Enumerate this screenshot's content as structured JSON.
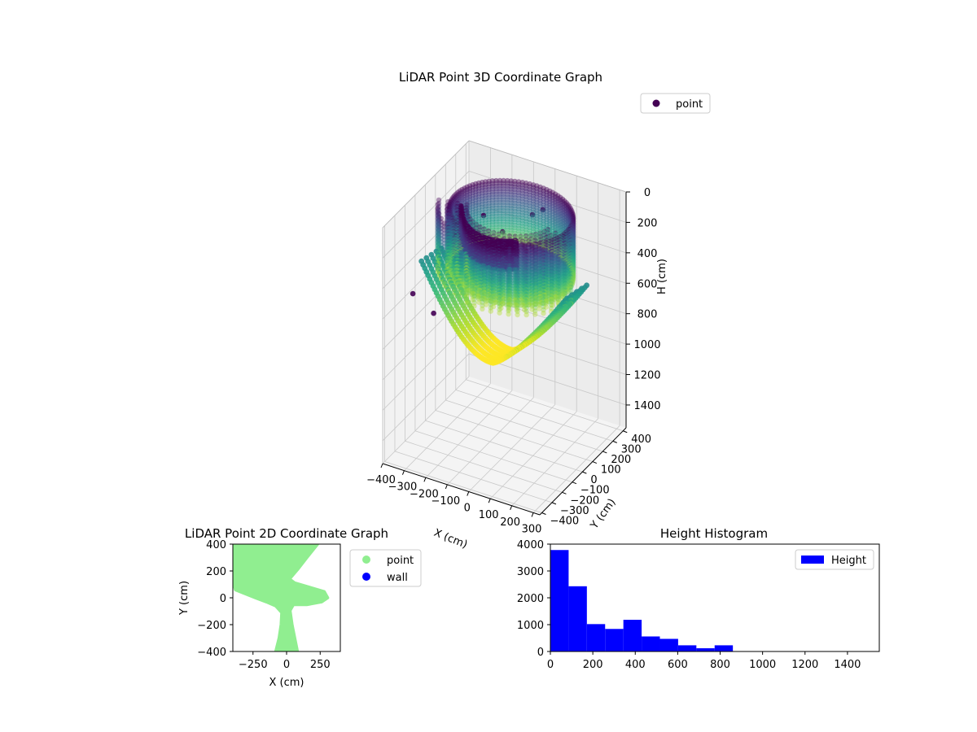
{
  "colors": {
    "wall_3d_dark": "#440154",
    "viridis_mid": "#21918c",
    "viridis_light": "#fde725",
    "point_2d": "#90ee90",
    "wall_2d": "#0000ff",
    "histogram": "#0000ff",
    "pane": "#f2f2f2",
    "grid": "#c8c8c8"
  },
  "chart_data": [
    {
      "id": "lidar-3d",
      "type": "scatter",
      "projection": "3d",
      "title": "LiDAR Point 3D Coordinate Graph",
      "xlabel": "X (cm)",
      "ylabel": "Y (cm)",
      "zlabel": "H (cm)",
      "xlim": [
        -400,
        330
      ],
      "ylim": [
        -420,
        430
      ],
      "zlim": [
        1550,
        0
      ],
      "z_inverted": true,
      "xticks": [
        -400,
        -300,
        -200,
        -100,
        0,
        100,
        200,
        300
      ],
      "yticks": [
        -400,
        -300,
        -200,
        -100,
        0,
        100,
        200,
        300,
        400
      ],
      "zticks": [
        0,
        200,
        400,
        600,
        800,
        1000,
        1200,
        1400
      ],
      "grid": true,
      "colormap": "viridis",
      "legend": {
        "placement": "top-right",
        "entries": [
          "point"
        ]
      },
      "series": [
        {
          "name": "point",
          "shape": "cylindrical wall of vertical point columns around the sensor (height 0–400) with a dense dark band near the top",
          "ring_center": [
            0,
            0
          ],
          "ring_radius": 260,
          "ring_height_range": [
            0,
            400
          ],
          "columns_radius": [
            190,
            320
          ],
          "columns_angle_deg": [
            195,
            355
          ],
          "columns_height_range": [
            0,
            420
          ],
          "band_height_range": [
            0,
            180
          ],
          "band_angle_deg": [
            200,
            300
          ],
          "band_radius": 230,
          "loose_points": [
            [
              -120,
              -20,
              60
            ],
            [
              -60,
              40,
              180
            ],
            [
              -240,
              -40,
              240
            ],
            [
              -340,
              -250,
              520
            ],
            [
              -220,
              -300,
              560
            ],
            [
              60,
              80,
              40
            ],
            [
              90,
              120,
              20
            ]
          ]
        },
        {
          "name": "curved strands",
          "shape": "five parallel point strands descending from the left edge and sweeping up toward the front of the ring",
          "strand_offsets": [
            -40,
            -20,
            0,
            20,
            40
          ],
          "start": [
            -400,
            60,
            500
          ],
          "bottom": [
            -80,
            60,
            1030
          ],
          "end": [
            250,
            120,
            480
          ]
        }
      ]
    },
    {
      "id": "lidar-2d",
      "type": "scatter",
      "title": "LiDAR Point 2D Coordinate Graph",
      "xlabel": "X (cm)",
      "ylabel": "Y (cm)",
      "xlim": [
        -400,
        400
      ],
      "ylim": [
        -400,
        400
      ],
      "xticks": [
        -250,
        0,
        250
      ],
      "yticks": [
        -400,
        -200,
        0,
        200,
        400
      ],
      "legend": {
        "placement": "outside-right",
        "entries": [
          "point",
          "wall"
        ]
      },
      "series": [
        {
          "name": "point",
          "type": "filled-region",
          "polygon": [
            [
              -400,
              400
            ],
            [
              230,
              400
            ],
            [
              150,
              300
            ],
            [
              80,
              210
            ],
            [
              20,
              140
            ],
            [
              60,
              110
            ],
            [
              180,
              75
            ],
            [
              280,
              45
            ],
            [
              305,
              0
            ],
            [
              260,
              -30
            ],
            [
              150,
              -50
            ],
            [
              50,
              -50
            ],
            [
              25,
              -95
            ],
            [
              40,
              -200
            ],
            [
              60,
              -300
            ],
            [
              80,
              -400
            ],
            [
              -80,
              -400
            ],
            [
              -55,
              -300
            ],
            [
              -40,
              -200
            ],
            [
              -35,
              -110
            ],
            [
              -80,
              -60
            ],
            [
              -150,
              -30
            ],
            [
              -230,
              0
            ],
            [
              -380,
              60
            ],
            [
              -400,
              130
            ]
          ]
        },
        {
          "name": "wall",
          "points": []
        }
      ]
    },
    {
      "id": "height-histogram",
      "type": "bar",
      "title": "Height Histogram",
      "xlabel": "",
      "ylabel": "",
      "xlim": [
        0,
        1550
      ],
      "ylim": [
        0,
        4000
      ],
      "xticks": [
        0,
        200,
        400,
        600,
        800,
        1000,
        1200,
        1400
      ],
      "yticks": [
        0,
        1000,
        2000,
        3000,
        4000
      ],
      "legend": {
        "placement": "top-right",
        "entries": [
          "Height"
        ]
      },
      "bin_width": 86,
      "bin_edges": [
        0,
        86,
        172,
        258,
        344,
        430,
        516,
        602,
        688,
        774,
        860,
        946,
        1032,
        1118,
        1204,
        1290,
        1376,
        1462,
        1548
      ],
      "series": [
        {
          "name": "Height",
          "values": [
            3780,
            2430,
            1020,
            840,
            1180,
            560,
            470,
            230,
            120,
            230,
            0,
            0,
            0,
            0,
            0,
            0,
            0,
            0
          ]
        }
      ]
    }
  ]
}
